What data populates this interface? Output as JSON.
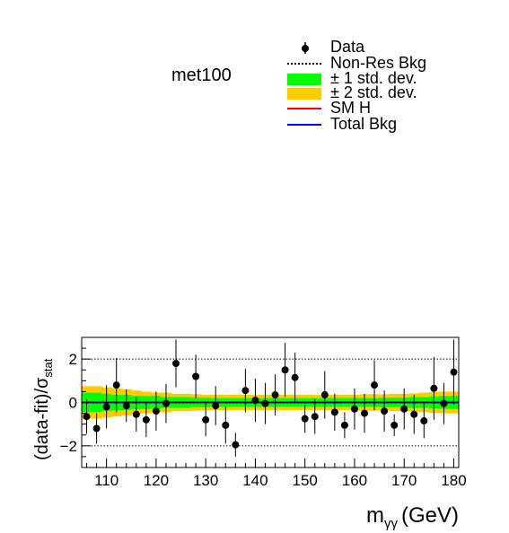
{
  "chart_data": {
    "type": "scatter",
    "category_label": "met100",
    "xlabel": {
      "main": "m",
      "sub": "γγ",
      "unit": "(GeV)"
    },
    "ylabel": {
      "main": "(data-fit)/σ",
      "sub": "stat"
    },
    "xlim": [
      105,
      181
    ],
    "ylim": [
      -3,
      3
    ],
    "xticks": [
      110,
      120,
      130,
      140,
      150,
      160,
      170,
      180
    ],
    "yticks": [
      -2,
      0,
      2
    ],
    "grid_lines_y": [
      -2,
      2
    ],
    "legend_position": "top-right",
    "legend": [
      {
        "label": "Data",
        "style": "marker"
      },
      {
        "label": "Non-Res Bkg",
        "style": "dotted-line"
      },
      {
        "label": "± 1 std. dev.",
        "style": "fill"
      },
      {
        "label": "± 2 std. dev.",
        "style": "fill"
      },
      {
        "label": "SM H",
        "style": "line"
      },
      {
        "label": "Total Bkg",
        "style": "line"
      }
    ],
    "colors": {
      "band1": "#00ff00",
      "band2": "#ffcc00",
      "sm_h": "#ff0000",
      "total_bkg": "#0000ff",
      "non_res": "#000000",
      "data": "#000000"
    },
    "band": {
      "x_edges": [
        105,
        107,
        109,
        111,
        113,
        115,
        117,
        119,
        121,
        123,
        125,
        127,
        129,
        131,
        133,
        135,
        137,
        139,
        141,
        143,
        145,
        147,
        149,
        151,
        153,
        155,
        157,
        159,
        161,
        163,
        165,
        167,
        169,
        171,
        173,
        175,
        177,
        179,
        181
      ],
      "sigma1": [
        0.45,
        0.45,
        0.4,
        0.35,
        0.35,
        0.3,
        0.3,
        0.3,
        0.25,
        0.25,
        0.25,
        0.22,
        0.22,
        0.2,
        0.2,
        0.2,
        0.2,
        0.2,
        0.2,
        0.2,
        0.2,
        0.2,
        0.2,
        0.2,
        0.2,
        0.2,
        0.2,
        0.2,
        0.2,
        0.2,
        0.22,
        0.22,
        0.22,
        0.25,
        0.25,
        0.28,
        0.3,
        0.3
      ],
      "sigma2": [
        0.75,
        0.75,
        0.7,
        0.65,
        0.6,
        0.55,
        0.5,
        0.45,
        0.45,
        0.4,
        0.4,
        0.38,
        0.35,
        0.35,
        0.35,
        0.35,
        0.35,
        0.35,
        0.35,
        0.35,
        0.35,
        0.35,
        0.35,
        0.35,
        0.35,
        0.35,
        0.35,
        0.35,
        0.38,
        0.38,
        0.38,
        0.4,
        0.4,
        0.42,
        0.45,
        0.48,
        0.5,
        0.5
      ]
    },
    "points": [
      {
        "x": 106,
        "y": -0.65,
        "err": 0.8
      },
      {
        "x": 108,
        "y": -1.2,
        "err": 0.7
      },
      {
        "x": 110,
        "y": -0.2,
        "err": 1.0
      },
      {
        "x": 112,
        "y": 0.8,
        "err": 1.25
      },
      {
        "x": 114,
        "y": -0.15,
        "err": 0.75
      },
      {
        "x": 116,
        "y": -0.55,
        "err": 0.8
      },
      {
        "x": 118,
        "y": -0.8,
        "err": 0.8
      },
      {
        "x": 120,
        "y": -0.4,
        "err": 0.9
      },
      {
        "x": 122,
        "y": -0.05,
        "err": 0.9
      },
      {
        "x": 124,
        "y": 1.8,
        "err": 1.1
      },
      {
        "x": 128,
        "y": 1.2,
        "err": 1.0
      },
      {
        "x": 130,
        "y": -0.8,
        "err": 0.75
      },
      {
        "x": 132,
        "y": -0.15,
        "err": 0.9
      },
      {
        "x": 134,
        "y": -1.05,
        "err": 0.85
      },
      {
        "x": 136,
        "y": -1.95,
        "err": 0.55
      },
      {
        "x": 138,
        "y": 0.55,
        "err": 1.0
      },
      {
        "x": 140,
        "y": 0.1,
        "err": 1.0
      },
      {
        "x": 142,
        "y": -0.05,
        "err": 0.95
      },
      {
        "x": 144,
        "y": 0.35,
        "err": 0.95
      },
      {
        "x": 146,
        "y": 1.5,
        "err": 1.25
      },
      {
        "x": 148,
        "y": 1.15,
        "err": 1.15
      },
      {
        "x": 150,
        "y": -0.75,
        "err": 0.65
      },
      {
        "x": 152,
        "y": -0.65,
        "err": 0.8
      },
      {
        "x": 154,
        "y": 0.35,
        "err": 1.1
      },
      {
        "x": 156,
        "y": -0.45,
        "err": 0.85
      },
      {
        "x": 158,
        "y": -1.05,
        "err": 0.6
      },
      {
        "x": 160,
        "y": -0.3,
        "err": 0.95
      },
      {
        "x": 162,
        "y": -0.5,
        "err": 0.9
      },
      {
        "x": 164,
        "y": 0.8,
        "err": 1.15
      },
      {
        "x": 166,
        "y": -0.4,
        "err": 0.95
      },
      {
        "x": 168,
        "y": -1.05,
        "err": 0.5
      },
      {
        "x": 170,
        "y": -0.3,
        "err": 0.95
      },
      {
        "x": 172,
        "y": -0.55,
        "err": 0.9
      },
      {
        "x": 174,
        "y": -0.85,
        "err": 0.8
      },
      {
        "x": 176,
        "y": 0.65,
        "err": 1.45
      },
      {
        "x": 178,
        "y": -0.05,
        "err": 0.95
      },
      {
        "x": 180,
        "y": 1.4,
        "err": 1.5
      }
    ]
  }
}
